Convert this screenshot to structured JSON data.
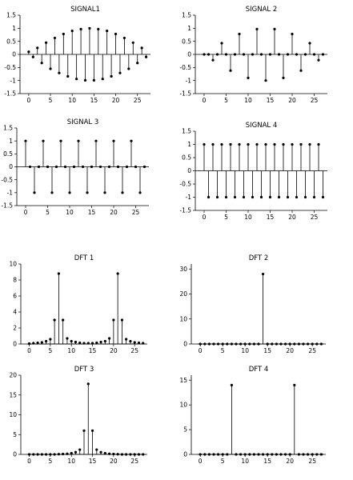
{
  "chart_data": [
    {
      "type": "stem",
      "title": "SIGNAL1",
      "xlim": [
        -2,
        28
      ],
      "ylim": [
        -1.5,
        1.5
      ],
      "xticks": [
        0,
        5,
        10,
        15,
        20,
        25
      ],
      "yticks": [
        -1.5,
        -1,
        -0.5,
        0,
        0.5,
        1,
        1.5
      ],
      "x": [
        0,
        1,
        2,
        3,
        4,
        5,
        6,
        7,
        8,
        9,
        10,
        11,
        12,
        13,
        14,
        15,
        16,
        17,
        18,
        19,
        20,
        21,
        22,
        23,
        24,
        25,
        26,
        27
      ],
      "values": [
        0.1,
        -0.1,
        0.25,
        -0.33,
        0.45,
        -0.55,
        0.63,
        -0.71,
        0.78,
        -0.84,
        0.9,
        -0.94,
        0.97,
        -0.99,
        1.0,
        -0.99,
        0.97,
        -0.94,
        0.9,
        -0.84,
        0.78,
        -0.71,
        0.63,
        -0.55,
        0.45,
        -0.33,
        0.25,
        -0.1
      ]
    },
    {
      "type": "stem",
      "title": "SIGNAL 2",
      "xlim": [
        -2,
        28
      ],
      "ylim": [
        -1.5,
        1.5
      ],
      "xticks": [
        0,
        5,
        10,
        15,
        20,
        25
      ],
      "yticks": [
        -1.5,
        -1,
        -0.5,
        0,
        0.5,
        1,
        1.5
      ],
      "x": [
        0,
        1,
        2,
        3,
        4,
        5,
        6,
        7,
        8,
        9,
        10,
        11,
        12,
        13,
        14,
        15,
        16,
        17,
        18,
        19,
        20,
        21,
        22,
        23,
        24,
        25,
        26,
        27
      ],
      "values": [
        0,
        0,
        -0.22,
        0,
        0.43,
        0,
        -0.62,
        0,
        0.78,
        0,
        -0.9,
        0,
        0.97,
        0,
        -1.0,
        0,
        0.97,
        0,
        -0.9,
        0,
        0.78,
        0,
        -0.62,
        0,
        0.43,
        0,
        -0.22,
        0
      ]
    },
    {
      "type": "stem",
      "title": "SIGNAL 3",
      "xlim": [
        -2,
        28
      ],
      "ylim": [
        -1.5,
        1.5
      ],
      "xticks": [
        0,
        5,
        10,
        15,
        20,
        25
      ],
      "yticks": [
        -1.5,
        -1,
        -0.5,
        0,
        0.5,
        1,
        1.5
      ],
      "x": [
        0,
        1,
        2,
        3,
        4,
        5,
        6,
        7,
        8,
        9,
        10,
        11,
        12,
        13,
        14,
        15,
        16,
        17,
        18,
        19,
        20,
        21,
        22,
        23,
        24,
        25,
        26,
        27
      ],
      "values": [
        1,
        0,
        -1,
        0,
        1,
        0,
        -1,
        0,
        1,
        0,
        -1,
        0,
        1,
        0,
        -1,
        0,
        1,
        0,
        -1,
        0,
        1,
        0,
        -1,
        0,
        1,
        0,
        -1,
        0
      ]
    },
    {
      "type": "stem",
      "title": "SIGNAL 4",
      "xlim": [
        -2,
        28
      ],
      "ylim": [
        -1.5,
        1.5
      ],
      "xticks": [
        0,
        5,
        10,
        15,
        20,
        25
      ],
      "yticks": [
        -1.5,
        -1,
        -0.5,
        0,
        0.5,
        1,
        1.5
      ],
      "x": [
        0,
        1,
        2,
        3,
        4,
        5,
        6,
        7,
        8,
        9,
        10,
        11,
        12,
        13,
        14,
        15,
        16,
        17,
        18,
        19,
        20,
        21,
        22,
        23,
        24,
        25,
        26,
        27
      ],
      "values": [
        1,
        -1,
        1,
        -1,
        1,
        -1,
        1,
        -1,
        1,
        -1,
        1,
        -1,
        1,
        -1,
        1,
        -1,
        1,
        -1,
        1,
        -1,
        1,
        -1,
        1,
        -1,
        1,
        -1,
        1,
        -1
      ]
    },
    {
      "type": "stem",
      "title": "DFT 1",
      "xlim": [
        -2,
        28
      ],
      "ylim": [
        0,
        10
      ],
      "xticks": [
        0,
        5,
        10,
        15,
        20,
        25
      ],
      "yticks": [
        0,
        2,
        4,
        6,
        8,
        10
      ],
      "x": [
        0,
        1,
        2,
        3,
        4,
        5,
        6,
        7,
        8,
        9,
        10,
        11,
        12,
        13,
        14,
        15,
        16,
        17,
        18,
        19,
        20,
        21,
        22,
        23,
        24,
        25,
        26,
        27
      ],
      "values": [
        0.05,
        0.1,
        0.15,
        0.2,
        0.35,
        0.6,
        3.0,
        8.8,
        3.0,
        0.7,
        0.35,
        0.25,
        0.15,
        0.1,
        0.1,
        0.1,
        0.15,
        0.25,
        0.35,
        0.7,
        3.0,
        8.8,
        3.0,
        0.6,
        0.35,
        0.2,
        0.15,
        0.1
      ]
    },
    {
      "type": "stem",
      "title": "DFT 2",
      "xlim": [
        -2,
        28
      ],
      "ylim": [
        0,
        32
      ],
      "xticks": [
        0,
        5,
        10,
        15,
        20,
        25
      ],
      "yticks": [
        0,
        10,
        20,
        30
      ],
      "x": [
        0,
        1,
        2,
        3,
        4,
        5,
        6,
        7,
        8,
        9,
        10,
        11,
        12,
        13,
        14,
        15,
        16,
        17,
        18,
        19,
        20,
        21,
        22,
        23,
        24,
        25,
        26,
        27
      ],
      "values": [
        0,
        0,
        0,
        0,
        0,
        0,
        0,
        0,
        0,
        0,
        0,
        0,
        0,
        0,
        28,
        0,
        0,
        0,
        0,
        0,
        0,
        0,
        0,
        0,
        0,
        0,
        0,
        0
      ]
    },
    {
      "type": "stem",
      "title": "DFT 3",
      "xlim": [
        -2,
        28
      ],
      "ylim": [
        0,
        20
      ],
      "xticks": [
        0,
        5,
        10,
        15,
        20,
        25
      ],
      "yticks": [
        0,
        5,
        10,
        15,
        20
      ],
      "x": [
        0,
        1,
        2,
        3,
        4,
        5,
        6,
        7,
        8,
        9,
        10,
        11,
        12,
        13,
        14,
        15,
        16,
        17,
        18,
        19,
        20,
        21,
        22,
        23,
        24,
        25,
        26,
        27
      ],
      "values": [
        0,
        0,
        0,
        0,
        0,
        0,
        0,
        0.05,
        0.1,
        0.15,
        0.3,
        0.55,
        1.2,
        6.0,
        17.8,
        6.0,
        1.2,
        0.55,
        0.3,
        0.15,
        0.1,
        0.05,
        0,
        0,
        0,
        0,
        0,
        0
      ]
    },
    {
      "type": "stem",
      "title": "DFT 4",
      "xlim": [
        -2,
        28
      ],
      "ylim": [
        0,
        16
      ],
      "xticks": [
        0,
        5,
        10,
        15,
        20,
        25
      ],
      "yticks": [
        0,
        5,
        10,
        15
      ],
      "x": [
        0,
        1,
        2,
        3,
        4,
        5,
        6,
        7,
        8,
        9,
        10,
        11,
        12,
        13,
        14,
        15,
        16,
        17,
        18,
        19,
        20,
        21,
        22,
        23,
        24,
        25,
        26,
        27
      ],
      "values": [
        0,
        0,
        0,
        0,
        0,
        0,
        0,
        14,
        0,
        0,
        0,
        0,
        0,
        0,
        0,
        0,
        0,
        0,
        0,
        0,
        0,
        14,
        0,
        0,
        0,
        0,
        0,
        0
      ]
    }
  ]
}
